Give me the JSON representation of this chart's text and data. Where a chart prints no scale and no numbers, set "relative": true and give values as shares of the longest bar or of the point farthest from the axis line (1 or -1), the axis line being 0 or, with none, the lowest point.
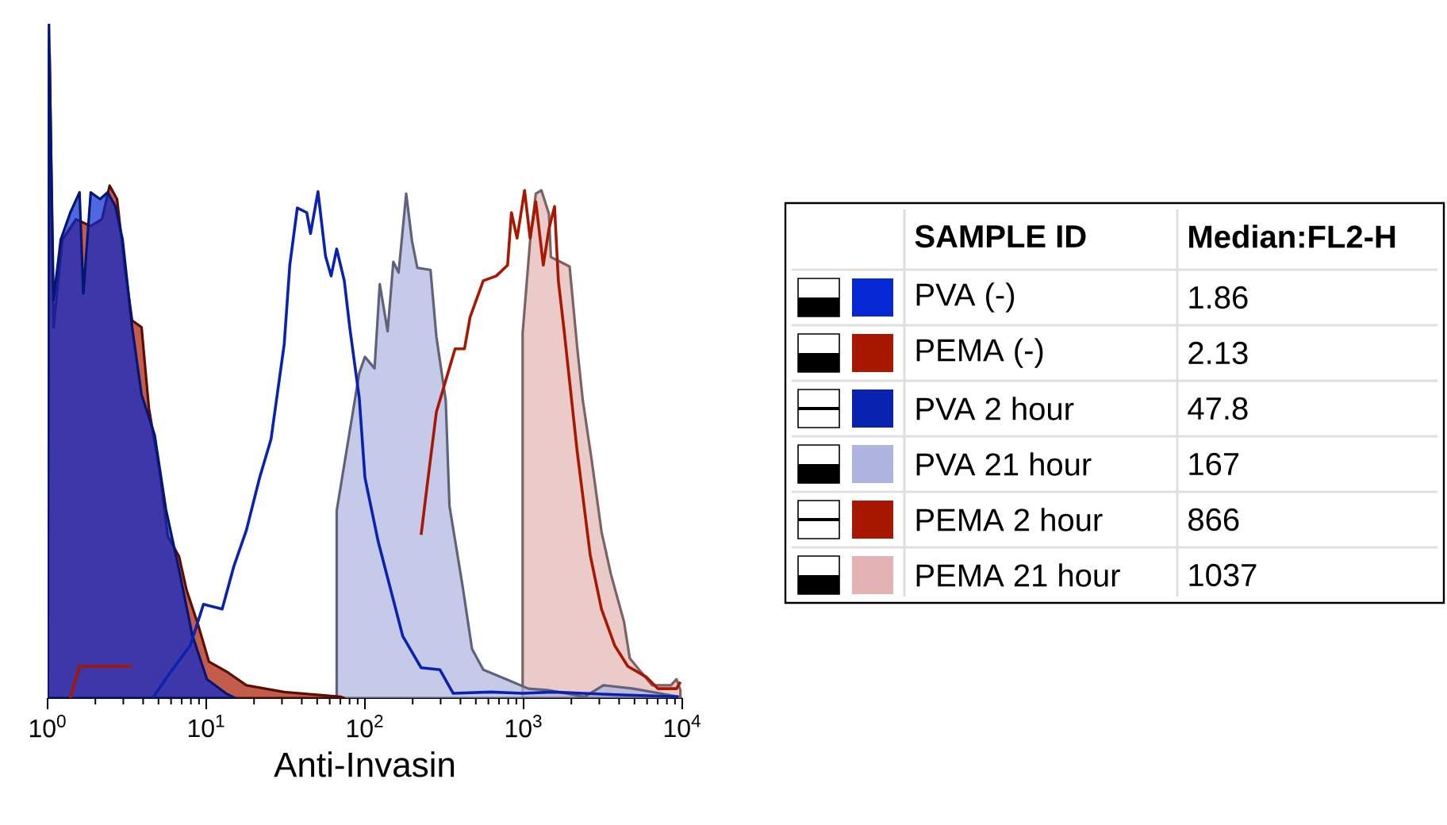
{
  "chart_data": {
    "type": "area",
    "relative": true,
    "log": "x",
    "xlabel": "Anti-Invasin",
    "legend": "right",
    "legend_title": "SAMPLE ID",
    "annotations": [
      "Median:FL2-H",
      "1.86",
      "2.13",
      "47.8",
      "167",
      "866",
      "1037"
    ],
    "xlim": [
      1,
      10000
    ],
    "xticks": [
      {
        "value": 1,
        "label": "10$^{0}$"
      },
      {
        "value": 10,
        "label": "10$^{1}$"
      },
      {
        "value": 100,
        "label": "10$^{2}$"
      },
      {
        "value": 1000,
        "label": "10$^{3}$"
      },
      {
        "value": 10000,
        "label": "10$^{4}$"
      }
    ],
    "series": [
      {
        "name": "PVA (-)",
        "color": "#0628d2",
        "x": [
          1,
          1.02,
          1.09,
          1.21,
          1.39,
          1.59,
          1.68,
          1.87,
          2.14,
          2.39,
          2.67,
          2.97,
          3.41,
          3.91,
          4.73,
          5.57,
          6.74,
          8.15,
          10.1,
          13.3,
          15.2
        ],
        "values": [
          0,
          1.0,
          0.59,
          0.68,
          0.72,
          0.75,
          0.6,
          0.75,
          0.74,
          0.75,
          0.73,
          0.68,
          0.55,
          0.45,
          0.39,
          0.28,
          0.19,
          0.094,
          0.028,
          0.007,
          0
        ]
      },
      {
        "name": "PEMA (-)",
        "color": "#a81800",
        "x": [
          1,
          1.03,
          1.09,
          1.24,
          1.51,
          1.87,
          2.2,
          2.46,
          2.74,
          3.06,
          3.41,
          3.91,
          4.35,
          5.13,
          5.72,
          6.74,
          7.52,
          8.85,
          10.4,
          13.7,
          17.9,
          31.0,
          70.2,
          74
        ],
        "values": [
          0,
          0.955,
          0.55,
          0.68,
          0.71,
          0.7,
          0.71,
          0.76,
          0.74,
          0.64,
          0.56,
          0.55,
          0.43,
          0.33,
          0.24,
          0.21,
          0.16,
          0.11,
          0.054,
          0.038,
          0.019,
          0.009,
          0.002,
          0
        ]
      },
      {
        "name": "PVA 2 hour",
        "type": "line",
        "color": "#0a22b0",
        "x": [
          4.6,
          5.72,
          7.93,
          9.6,
          12.6,
          14.9,
          17.9,
          21.7,
          25.6,
          31.0,
          33.6,
          37.5,
          43.0,
          45.4,
          50.6,
          56.4,
          61.2,
          66.4,
          74.1,
          80.4,
          92.1,
          100,
          121,
          173,
          226,
          297,
          360,
          621,
          986,
          1525,
          3850,
          9460
        ],
        "values": [
          0,
          0.033,
          0.078,
          0.139,
          0.132,
          0.195,
          0.249,
          0.327,
          0.384,
          0.525,
          0.642,
          0.727,
          0.72,
          0.689,
          0.751,
          0.656,
          0.626,
          0.666,
          0.619,
          0.548,
          0.445,
          0.327,
          0.233,
          0.092,
          0.045,
          0.042,
          0.007,
          0.009,
          0.007,
          0.009,
          0.005,
          0.002
        ]
      },
      {
        "name": "PVA 21 hour",
        "color": "#aeb3e0",
        "x": [
          66.4,
          92.1,
          100,
          115,
          124,
          139,
          151,
          163,
          182,
          198,
          214,
          259,
          282,
          323,
          341,
          412,
          473,
          557,
          815,
          1072,
          1406,
          2427,
          3184,
          4920,
          9460
        ],
        "values": [
          0.278,
          0.482,
          0.506,
          0.489,
          0.614,
          0.544,
          0.647,
          0.631,
          0.748,
          0.678,
          0.638,
          0.635,
          0.536,
          0.442,
          0.285,
          0.167,
          0.073,
          0.042,
          0.026,
          0.014,
          0.012,
          0.002,
          0.019,
          0.014,
          0.002
        ]
      },
      {
        "name": "PEMA 2 hour",
        "type": "line",
        "color": "#a81800",
        "x": [
          1.39,
          1.59,
          3.41,
          20,
          226,
          246,
          282,
          323,
          370,
          424,
          460,
          557,
          673,
          793,
          838,
          910,
          1014,
          1099,
          1194,
          1331,
          1445,
          1567,
          1656,
          1795,
          2173,
          2630,
          3097,
          3750,
          4540,
          5957,
          7015,
          9204,
          9730
        ],
        "values": [
          0,
          0.047,
          0.047,
          null,
          0.242,
          0.313,
          0.424,
          0.471,
          0.518,
          0.518,
          0.565,
          0.619,
          0.626,
          0.642,
          0.72,
          0.682,
          0.753,
          0.682,
          0.736,
          0.642,
          0.696,
          0.729,
          0.619,
          0.548,
          0.367,
          0.212,
          0.132,
          0.078,
          0.047,
          0.031,
          0.014,
          0.014,
          0.024
        ]
      },
      {
        "name": "PEMA 21 hour",
        "color": "#e3b3b3",
        "x": [
          986,
          1099,
          1194,
          1295,
          1445,
          1486,
          1702,
          1950,
          2173,
          2360,
          2705,
          3097,
          3548,
          4295,
          4667,
          5346,
          6471,
          8492,
          9204,
          9730
        ],
        "values": [
          0.541,
          0.678,
          0.748,
          0.753,
          0.718,
          0.654,
          0.647,
          0.64,
          0.522,
          0.442,
          0.348,
          0.247,
          0.184,
          0.113,
          0.059,
          0.042,
          0.019,
          0.019,
          0.028,
          0.012
        ]
      }
    ]
  }
}
